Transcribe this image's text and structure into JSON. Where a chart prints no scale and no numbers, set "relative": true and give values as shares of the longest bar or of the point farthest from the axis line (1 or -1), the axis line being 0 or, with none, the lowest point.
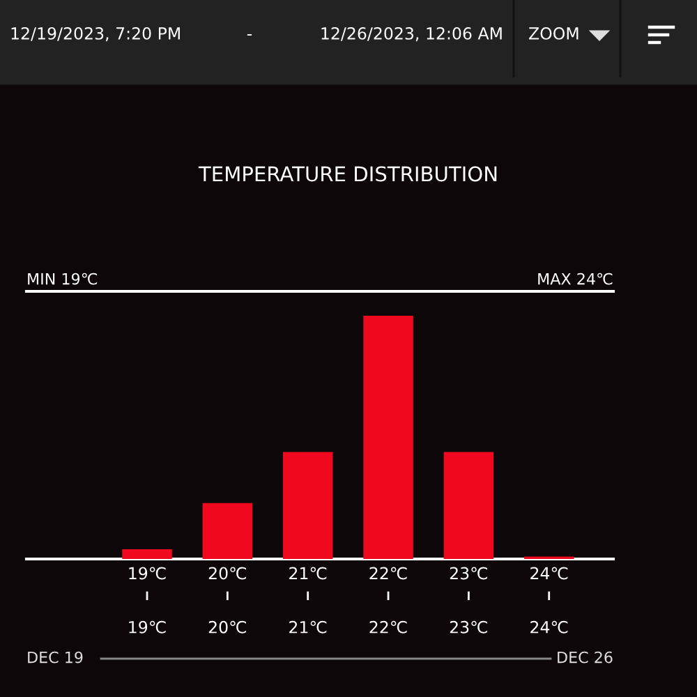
{
  "chart_data": {
    "type": "bar",
    "title": "TEMPERATURE DISTRIBUTION",
    "categories": [
      "19℃",
      "20℃",
      "21℃",
      "22℃",
      "23℃",
      "24℃"
    ],
    "values": [
      0.04,
      0.23,
      0.44,
      1,
      0.44,
      0.01
    ],
    "color": "#f0081f",
    "relative": true,
    "grid": false,
    "legend": false,
    "annotations": [
      "12/19/2023, 7:20 PM",
      "-",
      "12/26/2023, 12:06 AM",
      "ZOOM",
      "MIN 19℃",
      "MAX 24℃",
      "DEC 19",
      "DEC 26"
    ]
  }
}
